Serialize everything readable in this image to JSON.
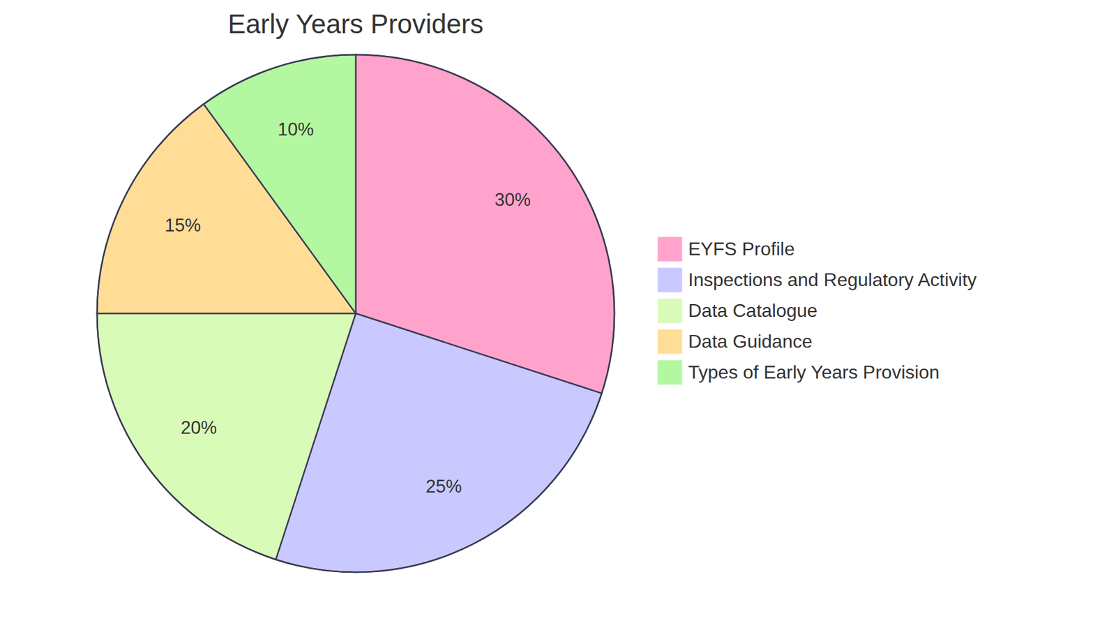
{
  "chart_data": {
    "type": "pie",
    "title": "Early Years Providers",
    "categories": [
      "EYFS Profile",
      "Inspections and Regulatory Activity",
      "Data Catalogue",
      "Data Guidance",
      "Types of Early Years Provision"
    ],
    "values": [
      30,
      25,
      20,
      15,
      10
    ],
    "value_labels": [
      "30%",
      "25%",
      "20%",
      "15%",
      "10%"
    ],
    "colors": [
      "#ffa3cc",
      "#c9c9ff",
      "#d9fbb8",
      "#ffdd96",
      "#b3f7a0"
    ],
    "data_labels": true,
    "legend": "right"
  }
}
